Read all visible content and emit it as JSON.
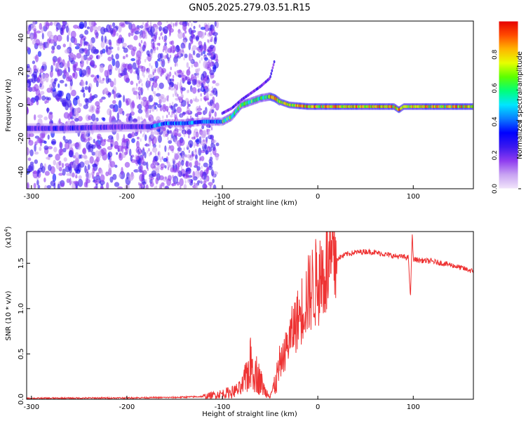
{
  "chart_data": [
    {
      "type": "heatmap",
      "title": "GN05.2025.279.03.51.R15",
      "xlabel": "Height of straight line (km)",
      "ylabel": "Frequency (Hz)",
      "xlim": [
        -305,
        163
      ],
      "ylim": [
        -50,
        50
      ],
      "x_ticks": [
        -300,
        -200,
        -100,
        0,
        100
      ],
      "y_ticks": [
        -40,
        -20,
        0,
        20,
        40
      ],
      "colorbar": {
        "label": "Normalized spectral amplitude",
        "range": [
          0,
          1
        ],
        "ticks": [
          "0.0",
          "0.2",
          "0.4",
          "0.6",
          "0.8"
        ],
        "tick_values": [
          0.0,
          0.2,
          0.4,
          0.6,
          0.8
        ],
        "colors": [
          "#f2e6fb",
          "#c9a4f2",
          "#8f3cf0",
          "#3a18ef",
          "#0000ff",
          "#0a7cff",
          "#00e6ff",
          "#00ff7a",
          "#5cff00",
          "#e6ff00",
          "#ffb400",
          "#ff4a00",
          "#e60000"
        ]
      },
      "ridge": {
        "x": [
          -270,
          -200,
          -175,
          -160,
          -140,
          -120,
          -100,
          -90,
          -80,
          -70,
          -60,
          -50,
          -45,
          -40,
          -30,
          -20,
          -10,
          0,
          20,
          40,
          60,
          80,
          85,
          90,
          100,
          120,
          140,
          163
        ],
        "y": [
          -14,
          -13,
          -13,
          -11,
          -11,
          -10,
          -10,
          -7,
          0,
          2,
          4,
          5,
          4,
          2,
          0,
          -0.5,
          -1,
          -1,
          -1,
          -1,
          -1,
          -1,
          -3,
          -1,
          -1,
          -1,
          -1,
          -1
        ]
      },
      "branch": {
        "x": [
          -100,
          -90,
          -80,
          -70,
          -60,
          -50,
          -45
        ],
        "y": [
          -5,
          -2,
          3,
          7,
          11,
          16,
          27
        ]
      }
    },
    {
      "type": "line",
      "xlabel": "Height of straight line (km)",
      "ylabel": "SNR (10 * v/v)",
      "y_multiplier": "(x10",
      "y_multiplier_exp": "4",
      "xlim": [
        -305,
        163
      ],
      "ylim": [
        0,
        1.85
      ],
      "x_ticks": [
        -300,
        -200,
        -100,
        0,
        100
      ],
      "y_ticks": [
        "0.0",
        "0.5",
        "1.0",
        "1.5"
      ],
      "y_tick_values": [
        0,
        0.5,
        1.0,
        1.5
      ],
      "color": "#ee3333",
      "envelope": {
        "x": [
          -305,
          -200,
          -150,
          -120,
          -100,
          -90,
          -80,
          -75,
          -70,
          -65,
          -60,
          -55,
          -50,
          -45,
          -40,
          -35,
          -30,
          -25,
          -20,
          -15,
          -10,
          -5,
          0,
          10,
          20,
          30,
          40,
          50,
          60,
          70,
          80,
          90,
          95,
          97,
          99,
          100,
          102,
          110,
          120,
          130,
          140,
          150,
          163
        ],
        "y": [
          0.01,
          0.015,
          0.02,
          0.03,
          0.06,
          0.08,
          0.12,
          0.25,
          0.4,
          0.3,
          0.2,
          0.08,
          0.05,
          0.15,
          0.35,
          0.5,
          0.65,
          0.8,
          0.9,
          1.05,
          1.15,
          1.25,
          1.3,
          1.45,
          1.55,
          1.6,
          1.62,
          1.63,
          1.62,
          1.6,
          1.58,
          1.57,
          1.56,
          1.1,
          1.85,
          1.55,
          1.54,
          1.53,
          1.52,
          1.5,
          1.48,
          1.45,
          1.41
        ]
      }
    }
  ]
}
